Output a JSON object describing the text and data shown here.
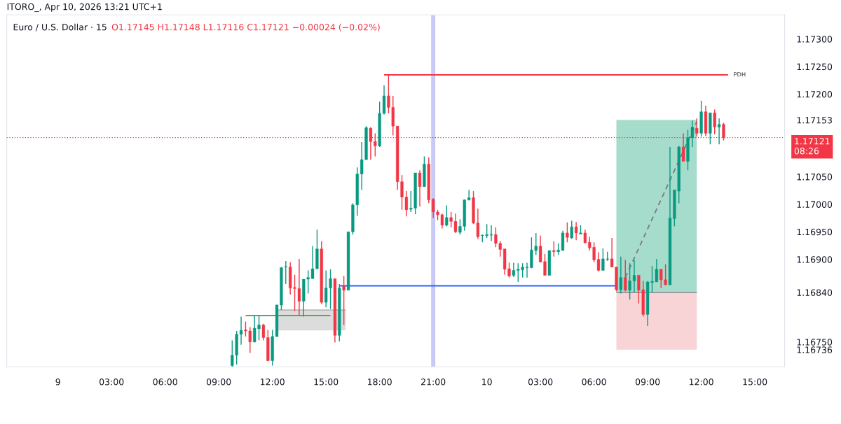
{
  "chart_data": {
    "type": "candlestick",
    "title": "Euro / U.S. Dollar · 15",
    "subtitle": "O1.17145 H1.17148 L1.17116 C1.17121 −0.00024 (−0.02%)",
    "annotations": [
      "ITORO_, Apr 10, 2026 13:21 UTC+1"
    ],
    "colors": [
      "#089981",
      "#089981",
      "#089981",
      "#f23645",
      "#f23645",
      "#089981",
      "#089981",
      "#f23645",
      "#f23645",
      "#089981",
      "#089981",
      "#089981",
      "#089981",
      "#f23645",
      "#f23645",
      "#f23645",
      "#089981",
      "#089981",
      "#089981",
      "#089981",
      "#f23645",
      "#089981",
      "#089981",
      "#f23645",
      "#089981",
      "#f23645",
      "#089981",
      "#089981",
      "#089981",
      "#089981",
      "#089981",
      "#f23645",
      "#f23645",
      "#089981",
      "#089981",
      "#f23645",
      "#f23645",
      "#f23645",
      "#f23645",
      "#f23645",
      "#089981",
      "#089981",
      "#f23645",
      "#089981",
      "#f23645",
      "#f23645",
      "#f23645",
      "#f23645",
      "#089981",
      "#f23645",
      "#f23645",
      "#089981",
      "#089981",
      "#089981",
      "#f23645",
      "#f23645",
      "#089981",
      "#089981",
      "#089981",
      "#f23645",
      "#f23645",
      "#f23645",
      "#f23645",
      "#089981",
      "#089981",
      "#089981",
      "#089981",
      "#089981",
      "#089981",
      "#f23645",
      "#f23645",
      "#089981",
      "#f23645",
      "#089981",
      "#089981",
      "#f23645",
      "#089981",
      "#f23645",
      "#089981",
      "#f23645",
      "#f23645",
      "#f23645",
      "#f23645",
      "#089981",
      "#089981",
      "#f23645",
      "#f23645",
      "#089981",
      "#f23645",
      "#089981",
      "#089981",
      "#f23645",
      "#f23645",
      "#089981",
      "#089981",
      "#089981",
      "#f23645",
      "#f23645",
      "#089981",
      "#089981",
      "#089981",
      "#f23645",
      "#089981",
      "#089981",
      "#f23645",
      "#089981",
      "#f23645",
      "#089981",
      "#f23645",
      "#089981",
      "#f23645"
    ],
    "x": [
      "2026-04-09T09:45",
      "2026-04-09T10:00",
      "2026-04-09T10:15",
      "2026-04-09T10:30",
      "2026-04-09T10:45",
      "2026-04-09T11:00",
      "2026-04-09T11:15",
      "2026-04-09T11:30",
      "2026-04-09T11:45",
      "2026-04-09T12:00",
      "2026-04-09T12:15",
      "2026-04-09T12:30",
      "2026-04-09T12:45",
      "2026-04-09T13:00",
      "2026-04-09T13:15",
      "2026-04-09T13:30",
      "2026-04-09T13:45",
      "2026-04-09T14:00",
      "2026-04-09T14:15",
      "2026-04-09T14:30",
      "2026-04-09T14:45",
      "2026-04-09T15:00",
      "2026-04-09T15:15",
      "2026-04-09T15:30",
      "2026-04-09T15:45",
      "2026-04-09T16:00",
      "2026-04-09T16:15",
      "2026-04-09T16:30",
      "2026-04-09T16:45",
      "2026-04-09T17:00",
      "2026-04-09T17:15",
      "2026-04-09T17:30",
      "2026-04-09T17:45",
      "2026-04-09T18:00",
      "2026-04-09T18:15",
      "2026-04-09T18:30",
      "2026-04-09T18:45",
      "2026-04-09T19:00",
      "2026-04-09T19:15",
      "2026-04-09T19:30",
      "2026-04-09T19:45",
      "2026-04-09T20:00",
      "2026-04-09T20:15",
      "2026-04-09T20:30",
      "2026-04-09T20:45",
      "2026-04-09T21:00",
      "2026-04-09T21:15",
      "2026-04-09T21:30",
      "2026-04-09T21:45",
      "2026-04-09T22:00",
      "2026-04-09T22:15",
      "2026-04-09T22:30",
      "2026-04-09T22:45",
      "2026-04-09T23:00",
      "2026-04-09T23:15",
      "2026-04-09T23:30",
      "2026-04-09T23:45",
      "2026-04-10T00:00",
      "2026-04-10T00:15",
      "2026-04-10T00:30",
      "2026-04-10T00:45",
      "2026-04-10T01:00",
      "2026-04-10T01:15",
      "2026-04-10T01:30",
      "2026-04-10T01:45",
      "2026-04-10T02:00",
      "2026-04-10T02:15",
      "2026-04-10T02:30",
      "2026-04-10T02:45",
      "2026-04-10T03:00",
      "2026-04-10T03:15",
      "2026-04-10T03:30",
      "2026-04-10T03:45",
      "2026-04-10T04:00",
      "2026-04-10T04:15",
      "2026-04-10T04:30",
      "2026-04-10T04:45",
      "2026-04-10T05:00",
      "2026-04-10T05:15",
      "2026-04-10T05:30",
      "2026-04-10T05:45",
      "2026-04-10T06:00",
      "2026-04-10T06:15",
      "2026-04-10T06:30",
      "2026-04-10T06:45",
      "2026-04-10T07:00",
      "2026-04-10T07:15",
      "2026-04-10T07:30",
      "2026-04-10T07:45",
      "2026-04-10T08:00",
      "2026-04-10T08:15",
      "2026-04-10T08:30",
      "2026-04-10T08:45",
      "2026-04-10T09:00",
      "2026-04-10T09:15",
      "2026-04-10T09:30",
      "2026-04-10T09:45",
      "2026-04-10T10:00",
      "2026-04-10T10:15",
      "2026-04-10T10:30",
      "2026-04-10T10:45",
      "2026-04-10T11:00",
      "2026-04-10T11:15",
      "2026-04-10T11:30",
      "2026-04-10T11:45",
      "2026-04-10T12:00",
      "2026-04-10T12:15",
      "2026-04-10T12:30",
      "2026-04-10T12:45",
      "2026-04-10T13:00",
      "2026-04-10T13:15"
    ],
    "ohlc": [
      [
        1.16707,
        1.16753,
        1.16705,
        1.16726
      ],
      [
        1.16726,
        1.1677,
        1.16709,
        1.16764
      ],
      [
        1.16764,
        1.16796,
        1.16745,
        1.16771
      ],
      [
        1.16772,
        1.16787,
        1.1676,
        1.1677
      ],
      [
        1.1677,
        1.16777,
        1.1673,
        1.1675
      ],
      [
        1.1675,
        1.16798,
        1.16749,
        1.16775
      ],
      [
        1.16774,
        1.16798,
        1.16753,
        1.16781
      ],
      [
        1.16781,
        1.16783,
        1.16753,
        1.16758
      ],
      [
        1.16758,
        1.16772,
        1.16715,
        1.16716
      ],
      [
        1.16716,
        1.16772,
        1.16707,
        1.1676
      ],
      [
        1.1676,
        1.16818,
        1.16759,
        1.16817
      ],
      [
        1.16817,
        1.16886,
        1.16808,
        1.16885
      ],
      [
        1.16886,
        1.16897,
        1.16855,
        1.16887
      ],
      [
        1.16886,
        1.16895,
        1.16836,
        1.16848
      ],
      [
        1.16849,
        1.16872,
        1.16806,
        1.16847
      ],
      [
        1.16847,
        1.16901,
        1.16798,
        1.16824
      ],
      [
        1.16824,
        1.16864,
        1.16796,
        1.16864
      ],
      [
        1.16864,
        1.1688,
        1.16838,
        1.16867
      ],
      [
        1.16865,
        1.16924,
        1.16865,
        1.16883
      ],
      [
        1.16883,
        1.16954,
        1.16882,
        1.16919
      ],
      [
        1.16919,
        1.16933,
        1.16819,
        1.16822
      ],
      [
        1.16822,
        1.1688,
        1.16813,
        1.16848
      ],
      [
        1.16848,
        1.16882,
        1.1681,
        1.16865
      ],
      [
        1.16865,
        1.16865,
        1.16749,
        1.16762
      ],
      [
        1.16762,
        1.16855,
        1.16751,
        1.16848
      ],
      [
        1.16851,
        1.1687,
        1.16781,
        1.16844
      ],
      [
        1.16844,
        1.1695,
        1.16844,
        1.1695
      ],
      [
        1.1695,
        1.17002,
        1.16945,
        1.16999
      ],
      [
        1.16999,
        1.17067,
        1.16979,
        1.17055
      ],
      [
        1.17055,
        1.17113,
        1.17026,
        1.17081
      ],
      [
        1.17081,
        1.17142,
        1.17081,
        1.17139
      ],
      [
        1.17138,
        1.1714,
        1.17081,
        1.17114
      ],
      [
        1.17114,
        1.17129,
        1.17087,
        1.17106
      ],
      [
        1.17106,
        1.17186,
        1.17104,
        1.17165
      ],
      [
        1.17165,
        1.17216,
        1.17163,
        1.17197
      ],
      [
        1.17197,
        1.17235,
        1.17165,
        1.17176
      ],
      [
        1.17176,
        1.17197,
        1.17125,
        1.17142
      ],
      [
        1.17142,
        1.17142,
        1.17026,
        1.17041
      ],
      [
        1.17041,
        1.17053,
        1.1699,
        1.17013
      ],
      [
        1.17013,
        1.17024,
        1.16978,
        1.1699
      ],
      [
        1.16991,
        1.17024,
        1.16986,
        1.16993
      ],
      [
        1.16993,
        1.17057,
        1.16982,
        1.17057
      ],
      [
        1.17057,
        1.17062,
        1.16996,
        1.17032
      ],
      [
        1.17032,
        1.17087,
        1.17032,
        1.17073
      ],
      [
        1.17073,
        1.17085,
        1.17002,
        1.17008
      ],
      [
        1.17009,
        1.17011,
        1.16975,
        1.16986
      ],
      [
        1.16986,
        1.1699,
        1.16971,
        1.16981
      ],
      [
        1.16981,
        1.16983,
        1.16956,
        1.16962
      ],
      [
        1.16962,
        1.16998,
        1.1696,
        1.16976
      ],
      [
        1.16976,
        1.16986,
        1.16958,
        1.16969
      ],
      [
        1.16969,
        1.16983,
        1.16948,
        1.1695
      ],
      [
        1.16949,
        1.16973,
        1.16945,
        1.1696
      ],
      [
        1.1696,
        1.17009,
        1.16952,
        1.17008
      ],
      [
        1.17008,
        1.17026,
        1.17007,
        1.17012
      ],
      [
        1.17012,
        1.17024,
        1.16964,
        1.16966
      ],
      [
        1.16966,
        1.16992,
        1.16937,
        1.16941
      ],
      [
        1.16943,
        1.16945,
        1.16931,
        1.16944
      ],
      [
        1.16943,
        1.16964,
        1.16939,
        1.16945
      ],
      [
        1.16944,
        1.16962,
        1.16933,
        1.16945
      ],
      [
        1.16945,
        1.16958,
        1.16922,
        1.16929
      ],
      [
        1.16929,
        1.16933,
        1.16905,
        1.16918
      ],
      [
        1.16919,
        1.16919,
        1.16872,
        1.16882
      ],
      [
        1.16883,
        1.16894,
        1.16867,
        1.1687
      ],
      [
        1.16871,
        1.16894,
        1.16868,
        1.1688
      ],
      [
        1.1688,
        1.16893,
        1.16859,
        1.16882
      ],
      [
        1.16881,
        1.16893,
        1.16867,
        1.16886
      ],
      [
        1.16885,
        1.16894,
        1.16867,
        1.16886
      ],
      [
        1.16885,
        1.1694,
        1.16884,
        1.16917
      ],
      [
        1.16916,
        1.16948,
        1.16908,
        1.16924
      ],
      [
        1.16924,
        1.16943,
        1.16895,
        1.16895
      ],
      [
        1.16896,
        1.1691,
        1.16871,
        1.16871
      ],
      [
        1.16871,
        1.16916,
        1.16871,
        1.16916
      ],
      [
        1.16916,
        1.16933,
        1.16905,
        1.16914
      ],
      [
        1.16914,
        1.16929,
        1.16908,
        1.16917
      ],
      [
        1.16916,
        1.16952,
        1.16916,
        1.16948
      ],
      [
        1.16948,
        1.16967,
        1.16931,
        1.1694
      ],
      [
        1.16939,
        1.1697,
        1.16937,
        1.16959
      ],
      [
        1.16959,
        1.16968,
        1.16935,
        1.16948
      ],
      [
        1.16946,
        1.16962,
        1.16946,
        1.16948
      ],
      [
        1.16948,
        1.16954,
        1.16929,
        1.1693
      ],
      [
        1.16931,
        1.16941,
        1.16916,
        1.16921
      ],
      [
        1.16922,
        1.16931,
        1.16895,
        1.16899
      ],
      [
        1.169,
        1.16913,
        1.16878,
        1.1688
      ],
      [
        1.1688,
        1.1692,
        1.1688,
        1.16901
      ],
      [
        1.169,
        1.16914,
        1.16897,
        1.16901
      ],
      [
        1.16901,
        1.16939,
        1.16886,
        1.16886
      ],
      [
        1.16886,
        1.16886,
        1.16842,
        1.16845
      ],
      [
        1.16845,
        1.16905,
        1.16838,
        1.16867
      ],
      [
        1.16867,
        1.16899,
        1.16842,
        1.16844
      ],
      [
        1.16844,
        1.16893,
        1.16827,
        1.16861
      ],
      [
        1.16861,
        1.16899,
        1.1684,
        1.16871
      ],
      [
        1.16871,
        1.16872,
        1.1682,
        1.16844
      ],
      [
        1.16845,
        1.16861,
        1.16796,
        1.168
      ],
      [
        1.168,
        1.16861,
        1.16779,
        1.16859
      ],
      [
        1.16858,
        1.16888,
        1.1684,
        1.1686
      ],
      [
        1.16859,
        1.16901,
        1.16859,
        1.16882
      ],
      [
        1.16882,
        1.16882,
        1.16848,
        1.16863
      ],
      [
        1.16863,
        1.16891,
        1.16853,
        1.16854
      ],
      [
        1.16854,
        1.17104,
        1.16853,
        1.16975
      ],
      [
        1.16974,
        1.17026,
        1.1696,
        1.17026
      ],
      [
        1.17024,
        1.17106,
        1.17002,
        1.17104
      ],
      [
        1.17104,
        1.17129,
        1.17078,
        1.17078
      ],
      [
        1.17078,
        1.17135,
        1.17062,
        1.17121
      ],
      [
        1.17121,
        1.17152,
        1.17104,
        1.1714
      ],
      [
        1.17138,
        1.17156,
        1.17123,
        1.17129
      ],
      [
        1.17129,
        1.17188,
        1.17123,
        1.17168
      ],
      [
        1.17168,
        1.17179,
        1.17124,
        1.17129
      ],
      [
        1.17129,
        1.17166,
        1.17109,
        1.17166
      ],
      [
        1.17166,
        1.17172,
        1.17127,
        1.1714
      ],
      [
        1.1714,
        1.17156,
        1.17109,
        1.17145
      ],
      [
        1.17145,
        1.17148,
        1.17116,
        1.17121
      ]
    ],
    "series": [
      {
        "type": "line",
        "color": "#9598a1",
        "colors": [
          "#a6dccb",
          "#a6dccb"
        ],
        "x": [
          "2026-04-10T07:15",
          "2026-04-10T11:45"
        ],
        "values": [
          1.1684,
          1.1684
        ],
        "upper": [
          1.17153,
          1.17153
        ],
        "lower": [
          1.1684,
          1.1684
        ]
      },
      {
        "type": "line",
        "color": "#9598a1",
        "colors": [
          "#f9d4d6",
          "#f9d4d6"
        ],
        "x": [
          "2026-04-10T07:15",
          "2026-04-10T11:45"
        ],
        "values": [
          1.1684,
          1.1684
        ],
        "upper": [
          1.1684,
          1.1684
        ],
        "lower": [
          1.16736,
          1.16736
        ]
      },
      {
        "type": "line",
        "color": "#b8b8b8",
        "colors": [
          "#dcdcdc",
          "#dcdcdc"
        ],
        "x": [
          "2026-04-09T12:15",
          "2026-04-09T16:06"
        ],
        "values": [
          1.16808,
          1.16808
        ],
        "upper": [
          1.16808,
          1.16808
        ],
        "lower": [
          1.16771,
          1.16771
        ]
      },
      {
        "type": "line",
        "color": "#4caf50",
        "x": [
          "2026-04-09T10:30",
          "2026-04-09T15:15"
        ],
        "values": [
          1.16798,
          1.16798
        ]
      },
      {
        "type": "line",
        "color": "#2962ff",
        "x": [
          "2026-04-09T15:45",
          "2026-04-10T07:15"
        ],
        "values": [
          1.16852,
          1.16852
        ]
      },
      {
        "type": "line",
        "name": "PDH",
        "color": "#f23645",
        "x": [
          "2026-04-09T18:15",
          "2026-04-10T13:30"
        ],
        "values": [
          1.17235,
          1.17235
        ]
      },
      {
        "type": "line",
        "color": "#787b86",
        "line_style": "dashed",
        "x": [
          "2026-04-10T07:45",
          "2026-04-10T11:45"
        ],
        "values": [
          1.16867,
          1.1715
        ]
      }
    ],
    "ref_lines": [
      {
        "axis": "y",
        "value": 1.17121,
        "label": "1.17121\n08:26",
        "color": "#f23645",
        "line_style": "dotted"
      }
    ],
    "bands": [
      {
        "axis": "x",
        "from": "2026-04-09T20:53",
        "to": "2026-04-09T21:07",
        "color": "#c9c9f7"
      }
    ],
    "xlim": [
      "2026-04-08T21:08",
      "2026-04-10T16:40"
    ],
    "ylim": [
      1.16705,
      1.17344
    ],
    "xticks": [
      {
        "value": "2026-04-09T00:00",
        "label": "9"
      },
      {
        "value": "2026-04-09T03:00",
        "label": "03:00"
      },
      {
        "value": "2026-04-09T06:00",
        "label": "06:00"
      },
      {
        "value": "2026-04-09T09:00",
        "label": "09:00"
      },
      {
        "value": "2026-04-09T12:00",
        "label": "12:00"
      },
      {
        "value": "2026-04-09T15:00",
        "label": "15:00"
      },
      {
        "value": "2026-04-09T18:00",
        "label": "18:00"
      },
      {
        "value": "2026-04-09T21:00",
        "label": "21:00"
      },
      {
        "value": "2026-04-10T00:00",
        "label": "10"
      },
      {
        "value": "2026-04-10T03:00",
        "label": "03:00"
      },
      {
        "value": "2026-04-10T06:00",
        "label": "06:00"
      },
      {
        "value": "2026-04-10T09:00",
        "label": "09:00"
      },
      {
        "value": "2026-04-10T12:00",
        "label": "12:00"
      },
      {
        "value": "2026-04-10T15:00",
        "label": "15:00"
      }
    ],
    "yticks": [
      {
        "value": 1.1675,
        "label": "1.16750"
      },
      {
        "value": 1.16736,
        "label": "1.16736"
      },
      {
        "value": 1.1684,
        "label": "1.16840"
      },
      {
        "value": 1.169,
        "label": "1.16900"
      },
      {
        "value": 1.1695,
        "label": "1.16950"
      },
      {
        "value": 1.17,
        "label": "1.17000"
      },
      {
        "value": 1.1705,
        "label": "1.17050"
      },
      {
        "value": 1.17153,
        "label": "1.17153"
      },
      {
        "value": 1.172,
        "label": "1.17200"
      },
      {
        "value": 1.1725,
        "label": "1.17250"
      },
      {
        "value": 1.173,
        "label": "1.17300"
      }
    ]
  }
}
